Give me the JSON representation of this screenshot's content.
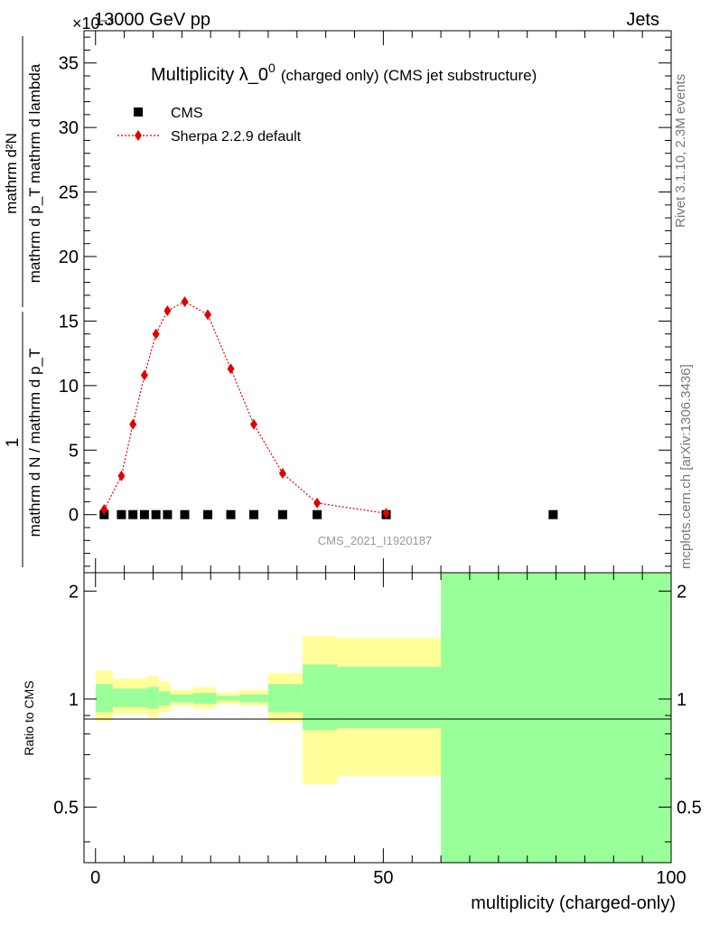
{
  "header": {
    "energy": "13000 GeV pp",
    "category": "Jets",
    "exponent": "×10⁻³"
  },
  "side_labels": {
    "rivet": "Rivet 3.1.10,  2.3M events",
    "mcplots": "mcplots.cern.ch [arXiv:1306.3436]"
  },
  "watermark": "CMS_2021_I1920187",
  "chart_data": [
    {
      "type": "scatter",
      "title": "Multiplicity λ_0⁰ (charged only) (CMS jet substructure)",
      "title_main": "Multiplicity λ_0",
      "title_sup": "0",
      "title_suffix": "(charged only) (CMS jet substructure)",
      "ylabel": "1/(mathrm d N / mathrm d p_T) · mathrm d²N / (mathrm d p_T mathrm d lambda)",
      "ylabel_num": "mathrm d²N",
      "ylabel_den": "mathrm d p_T mathrm d lambda",
      "ylabel_prefix_num": "1",
      "ylabel_prefix_den": "mathrm d N / mathrm d p_T",
      "xlim": [
        -2,
        100
      ],
      "ylim": [
        -4.5,
        37.5
      ],
      "y_scale_exponent": -3,
      "y_ticks": [
        0,
        5,
        10,
        15,
        20,
        25,
        30,
        35
      ],
      "legend_position": "top-left",
      "series": [
        {
          "name": "CMS",
          "marker": "square",
          "color": "#000000",
          "x": [
            1.5,
            4.5,
            6.5,
            8.5,
            10.5,
            12.5,
            15.5,
            19.5,
            23.5,
            27.5,
            32.5,
            38.5,
            50.5,
            79.5
          ],
          "y": [
            0,
            0,
            0,
            0,
            0,
            0,
            0,
            0,
            0,
            0,
            0,
            0,
            0,
            0
          ]
        },
        {
          "name": "Sherpa 2.2.9 default",
          "marker": "diamond",
          "line": "dotted",
          "color": "#e00000",
          "x": [
            1.5,
            4.5,
            6.5,
            8.5,
            10.5,
            12.5,
            15.5,
            19.5,
            23.5,
            27.5,
            32.5,
            38.5,
            50.5
          ],
          "y": [
            0.4,
            3.0,
            7.0,
            10.8,
            14.0,
            15.8,
            16.5,
            15.5,
            11.3,
            7.0,
            3.2,
            0.9,
            0.1
          ]
        }
      ]
    },
    {
      "type": "area",
      "ylabel": "Ratio to CMS",
      "xlabel": "multiplicity (charged-only)",
      "xlim": [
        -2,
        100
      ],
      "ylim": [
        0.35,
        2.25
      ],
      "x_ticks": [
        0,
        50,
        100
      ],
      "y_ticks": [
        0.5,
        1,
        2
      ],
      "bins": [
        {
          "lo": 0,
          "hi": 3,
          "inner": [
            0.92,
            1.1
          ],
          "outer": [
            0.87,
            1.2
          ]
        },
        {
          "lo": 3,
          "hi": 7,
          "inner": [
            0.95,
            1.07
          ],
          "outer": [
            0.91,
            1.14
          ]
        },
        {
          "lo": 7,
          "hi": 9,
          "inner": [
            0.95,
            1.07
          ],
          "outer": [
            0.91,
            1.14
          ]
        },
        {
          "lo": 9,
          "hi": 11,
          "inner": [
            0.94,
            1.08
          ],
          "outer": [
            0.89,
            1.16
          ]
        },
        {
          "lo": 11,
          "hi": 13,
          "inner": [
            0.96,
            1.05
          ],
          "outer": [
            0.92,
            1.12
          ]
        },
        {
          "lo": 13,
          "hi": 17,
          "inner": [
            0.98,
            1.03
          ],
          "outer": [
            0.96,
            1.06
          ]
        },
        {
          "lo": 17,
          "hi": 21,
          "inner": [
            0.97,
            1.04
          ],
          "outer": [
            0.94,
            1.08
          ]
        },
        {
          "lo": 21,
          "hi": 25,
          "inner": [
            0.99,
            1.02
          ],
          "outer": [
            0.97,
            1.04
          ]
        },
        {
          "lo": 25,
          "hi": 30,
          "inner": [
            0.98,
            1.03
          ],
          "outer": [
            0.96,
            1.06
          ]
        },
        {
          "lo": 30,
          "hi": 36,
          "inner": [
            0.92,
            1.1
          ],
          "outer": [
            0.86,
            1.18
          ]
        },
        {
          "lo": 36,
          "hi": 42,
          "inner": [
            0.82,
            1.25
          ],
          "outer": [
            0.58,
            1.5
          ]
        },
        {
          "lo": 42,
          "hi": 60,
          "inner": [
            0.83,
            1.23
          ],
          "outer": [
            0.61,
            1.48
          ]
        },
        {
          "lo": 60,
          "hi": 100,
          "inner": [
            0.3,
            2.4
          ],
          "outer": [
            0.3,
            2.4
          ]
        }
      ]
    }
  ]
}
